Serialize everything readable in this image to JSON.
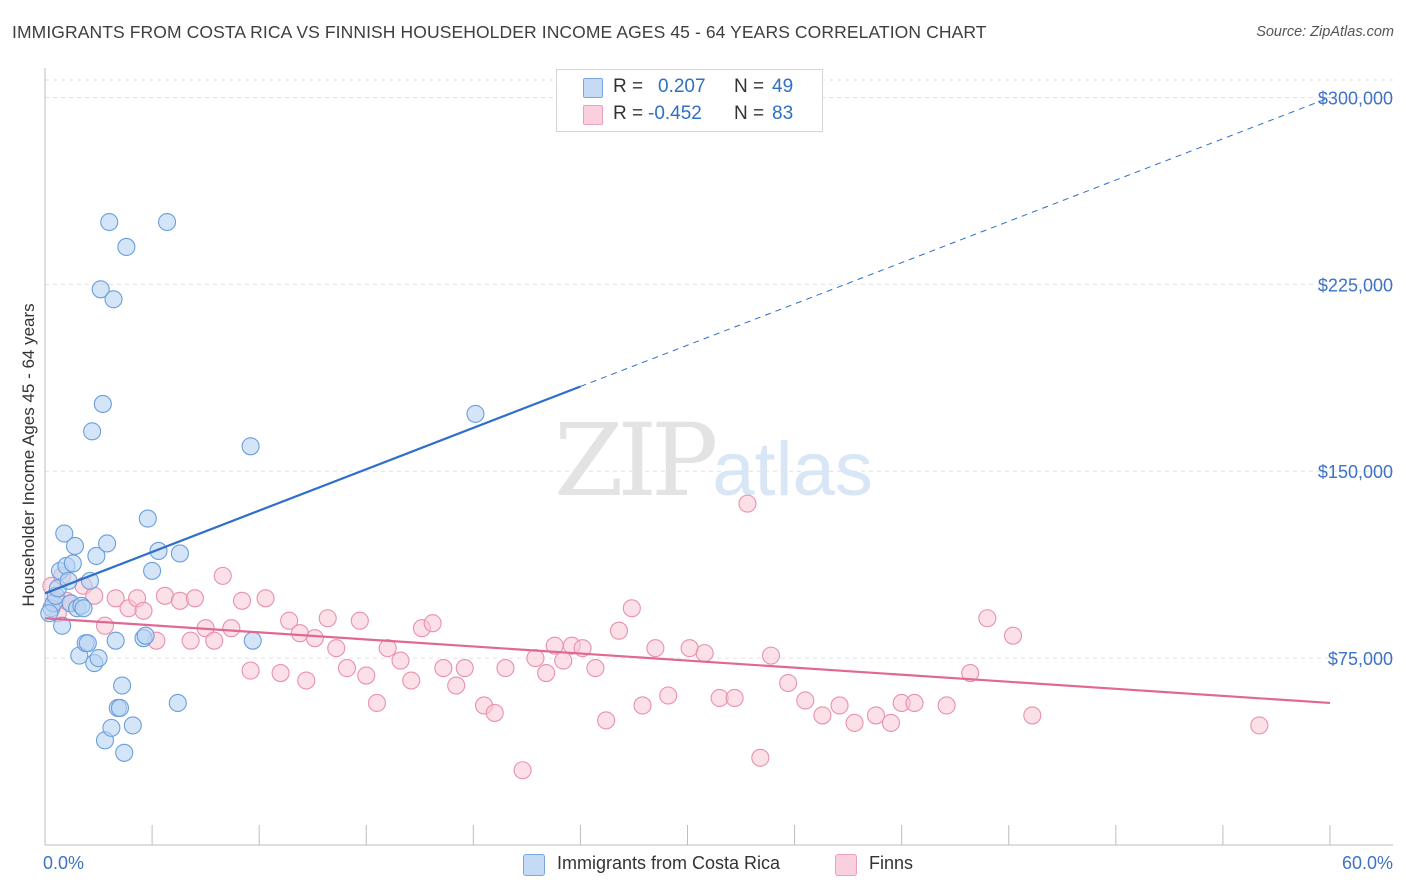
{
  "header": {
    "title": "IMMIGRANTS FROM COSTA RICA VS FINNISH HOUSEHOLDER INCOME AGES 45 - 64 YEARS CORRELATION CHART",
    "source": "Source: ZipAtlas.com"
  },
  "watermark": {
    "zip": "ZIP",
    "atlas": "atlas"
  },
  "legend_top": {
    "rows": [
      {
        "r_label": "R =",
        "r_value": "0.207",
        "n_label": "N =",
        "n_value": "49",
        "color": "#a8c8f0"
      },
      {
        "r_label": "R =",
        "r_value": "-0.452",
        "n_label": "N =",
        "n_value": "83",
        "color": "#f6b7cb"
      }
    ]
  },
  "legend_bottom": {
    "series1": "Immigrants from Costa Rica",
    "series2": "Finns"
  },
  "colors": {
    "blue_fill": "#b8d3f3",
    "blue_stroke": "#6a9fdc",
    "blue_line": "#2e6fcb",
    "pink_fill": "#f8c6d6",
    "pink_stroke": "#e990ae",
    "pink_line": "#e06892",
    "axis_text": "#3d72c7",
    "grid": "#e2e2e2"
  },
  "chart_data": {
    "type": "scatter",
    "title": "IMMIGRANTS FROM COSTA RICA VS FINNISH HOUSEHOLDER INCOME AGES 45 - 64 YEARS CORRELATION CHART",
    "xlabel": "",
    "ylabel": "Householder Income Ages 45 - 64 years",
    "xlim": [
      0,
      60
    ],
    "ylim": [
      0,
      307000
    ],
    "x_tick_labels": [
      "0.0%",
      "60.0%"
    ],
    "y_ticks": [
      75000,
      150000,
      225000,
      300000
    ],
    "y_tick_labels": [
      "$75,000",
      "$150,000",
      "$225,000",
      "$300,000"
    ],
    "grid": true,
    "series": [
      {
        "name": "Immigrants from Costa Rica",
        "r": 0.207,
        "n": 49,
        "trend": {
          "x": [
            0,
            25
          ],
          "y": [
            101000,
            184000
          ],
          "dashed_to": {
            "x": 60,
            "y": 300000
          }
        },
        "points": [
          [
            0.3,
            95000
          ],
          [
            0.4,
            97000
          ],
          [
            0.5,
            100000
          ],
          [
            0.6,
            103000
          ],
          [
            0.7,
            110000
          ],
          [
            0.8,
            88000
          ],
          [
            0.9,
            125000
          ],
          [
            1.0,
            112000
          ],
          [
            1.1,
            106000
          ],
          [
            1.2,
            97000
          ],
          [
            1.3,
            113000
          ],
          [
            1.4,
            120000
          ],
          [
            1.5,
            95000
          ],
          [
            1.6,
            76000
          ],
          [
            1.7,
            96000
          ],
          [
            1.8,
            95000
          ],
          [
            1.9,
            81000
          ],
          [
            2.0,
            81000
          ],
          [
            2.1,
            106000
          ],
          [
            2.2,
            166000
          ],
          [
            2.3,
            73000
          ],
          [
            2.4,
            116000
          ],
          [
            2.5,
            75000
          ],
          [
            2.6,
            223000
          ],
          [
            2.7,
            177000
          ],
          [
            2.8,
            42000
          ],
          [
            2.9,
            121000
          ],
          [
            3.0,
            250000
          ],
          [
            3.1,
            47000
          ],
          [
            3.2,
            219000
          ],
          [
            3.3,
            82000
          ],
          [
            3.4,
            55000
          ],
          [
            3.5,
            55000
          ],
          [
            3.6,
            64000
          ],
          [
            3.7,
            37000
          ],
          [
            3.8,
            240000
          ],
          [
            4.1,
            48000
          ],
          [
            4.6,
            83000
          ],
          [
            4.7,
            84000
          ],
          [
            4.8,
            131000
          ],
          [
            5.0,
            110000
          ],
          [
            5.3,
            118000
          ],
          [
            5.7,
            250000
          ],
          [
            6.2,
            57000
          ],
          [
            6.3,
            117000
          ],
          [
            9.6,
            160000
          ],
          [
            9.7,
            82000
          ],
          [
            20.1,
            173000
          ],
          [
            0.2,
            93000
          ]
        ]
      },
      {
        "name": "Finns",
        "r": -0.452,
        "n": 83,
        "trend": {
          "x": [
            0,
            60
          ],
          "y": [
            91000,
            57000
          ]
        },
        "points": [
          [
            0.3,
            104000
          ],
          [
            0.5,
            98000
          ],
          [
            0.6,
            93000
          ],
          [
            0.8,
            108000
          ],
          [
            1.0,
            98000
          ],
          [
            1.2,
            97000
          ],
          [
            1.8,
            104000
          ],
          [
            2.3,
            100000
          ],
          [
            2.8,
            88000
          ],
          [
            3.3,
            99000
          ],
          [
            3.9,
            95000
          ],
          [
            4.3,
            99000
          ],
          [
            4.6,
            94000
          ],
          [
            5.2,
            82000
          ],
          [
            5.6,
            100000
          ],
          [
            6.3,
            98000
          ],
          [
            6.8,
            82000
          ],
          [
            7.0,
            99000
          ],
          [
            7.5,
            87000
          ],
          [
            7.9,
            82000
          ],
          [
            8.3,
            108000
          ],
          [
            8.7,
            87000
          ],
          [
            9.2,
            98000
          ],
          [
            9.6,
            70000
          ],
          [
            10.3,
            99000
          ],
          [
            11.0,
            69000
          ],
          [
            11.4,
            90000
          ],
          [
            11.9,
            85000
          ],
          [
            12.2,
            66000
          ],
          [
            12.6,
            83000
          ],
          [
            13.2,
            91000
          ],
          [
            13.6,
            79000
          ],
          [
            14.1,
            71000
          ],
          [
            14.7,
            90000
          ],
          [
            15.0,
            68000
          ],
          [
            15.5,
            57000
          ],
          [
            16.0,
            79000
          ],
          [
            16.6,
            74000
          ],
          [
            17.1,
            66000
          ],
          [
            17.6,
            87000
          ],
          [
            18.1,
            89000
          ],
          [
            18.6,
            71000
          ],
          [
            19.2,
            64000
          ],
          [
            19.6,
            71000
          ],
          [
            20.5,
            56000
          ],
          [
            21.0,
            53000
          ],
          [
            21.5,
            71000
          ],
          [
            22.3,
            30000
          ],
          [
            22.9,
            75000
          ],
          [
            23.4,
            69000
          ],
          [
            23.8,
            80000
          ],
          [
            24.2,
            74000
          ],
          [
            24.6,
            80000
          ],
          [
            25.1,
            79000
          ],
          [
            25.7,
            71000
          ],
          [
            26.2,
            50000
          ],
          [
            26.8,
            86000
          ],
          [
            27.4,
            95000
          ],
          [
            27.9,
            56000
          ],
          [
            28.5,
            79000
          ],
          [
            29.1,
            60000
          ],
          [
            30.1,
            79000
          ],
          [
            30.8,
            77000
          ],
          [
            31.5,
            59000
          ],
          [
            32.2,
            59000
          ],
          [
            32.8,
            137000
          ],
          [
            33.4,
            35000
          ],
          [
            33.9,
            76000
          ],
          [
            34.7,
            65000
          ],
          [
            35.5,
            58000
          ],
          [
            36.3,
            52000
          ],
          [
            37.1,
            56000
          ],
          [
            37.8,
            49000
          ],
          [
            38.8,
            52000
          ],
          [
            39.5,
            49000
          ],
          [
            40.0,
            57000
          ],
          [
            40.6,
            57000
          ],
          [
            42.1,
            56000
          ],
          [
            43.2,
            69000
          ],
          [
            44.0,
            91000
          ],
          [
            45.2,
            84000
          ],
          [
            46.1,
            52000
          ],
          [
            56.7,
            48000
          ]
        ]
      }
    ]
  }
}
